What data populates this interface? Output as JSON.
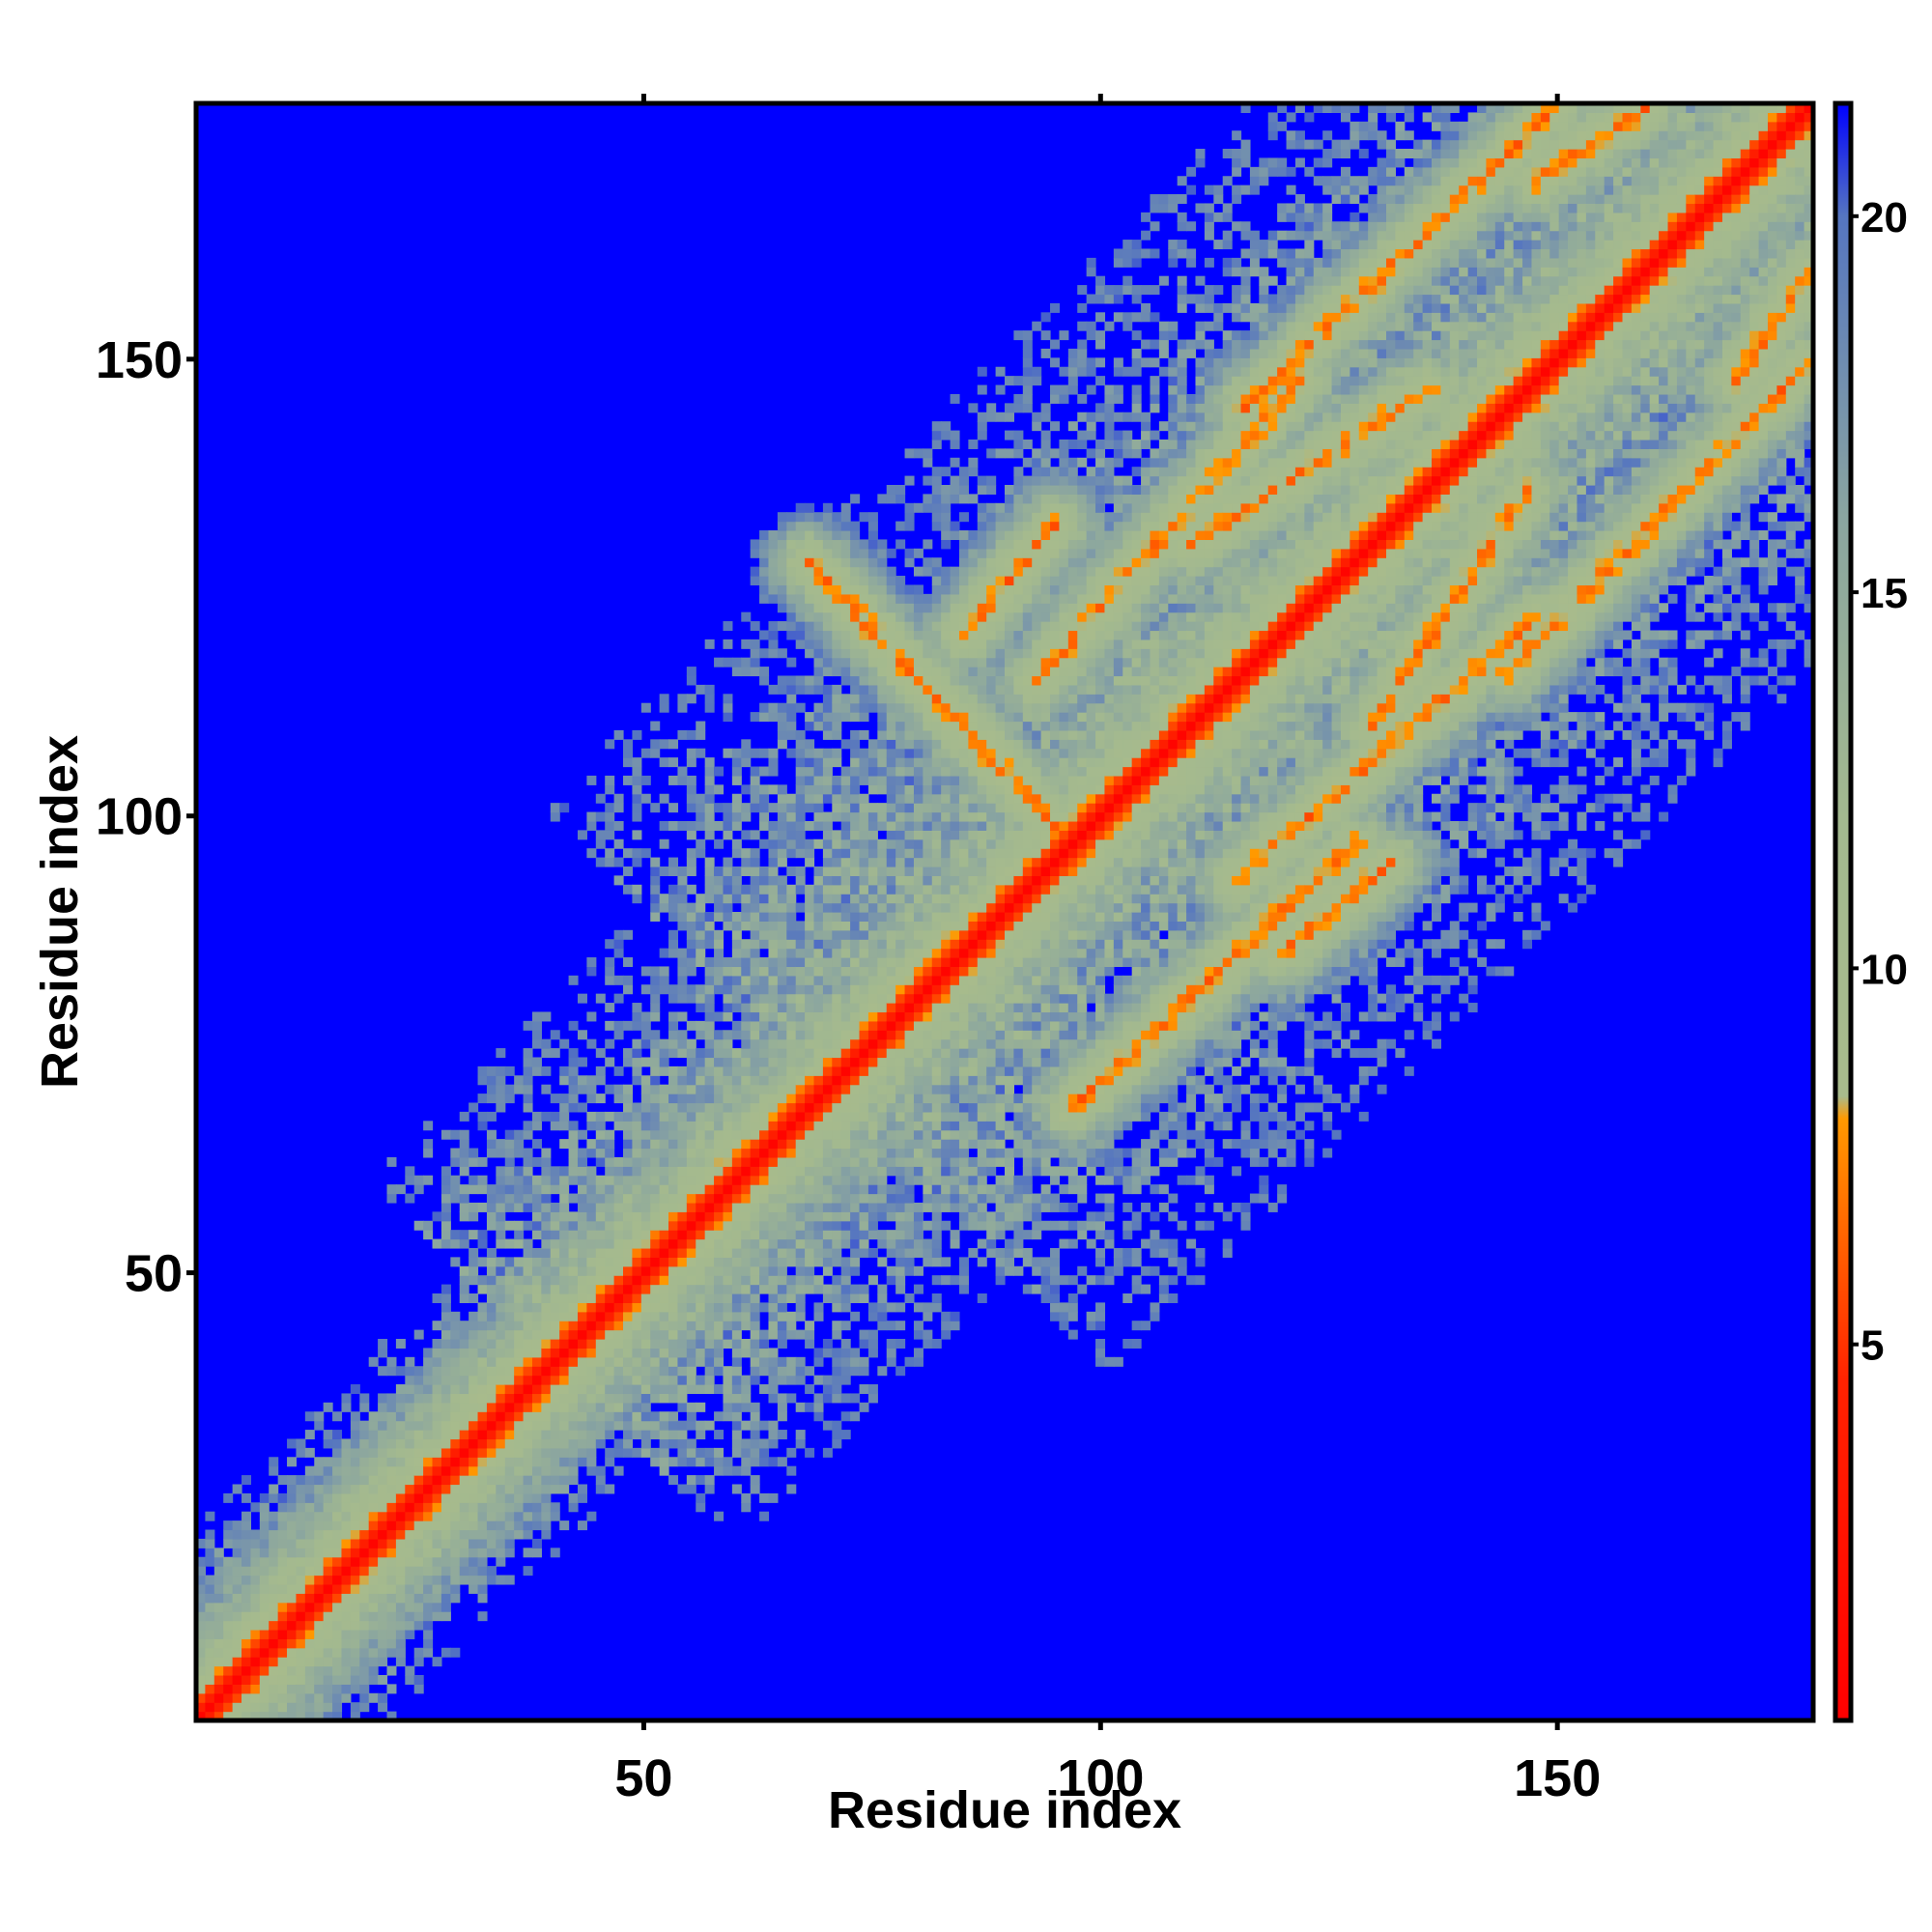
{
  "chart_data": {
    "type": "heatmap",
    "title": "",
    "xlabel": "Residue index",
    "ylabel": "Residue index",
    "n_residues": 178,
    "xlim": [
      1,
      178
    ],
    "ylim": [
      1,
      178
    ],
    "x_ticks": [
      50,
      100,
      150
    ],
    "y_ticks": [
      50,
      100,
      150
    ],
    "x_tick_labels": [
      "50",
      "100",
      "150"
    ],
    "y_tick_labels": [
      "50",
      "100",
      "150"
    ],
    "colorbar": {
      "range": [
        0,
        21.5
      ],
      "ticks": [
        5,
        10,
        15,
        20
      ],
      "tick_labels": [
        "5",
        "10",
        "15",
        "20"
      ],
      "stops": [
        {
          "value": 0,
          "color": "#ff0000"
        },
        {
          "value": 4.5,
          "color": "#ff2200"
        },
        {
          "value": 8,
          "color": "#ff9900"
        },
        {
          "value": 8.3,
          "color": "#a8bb8c"
        },
        {
          "value": 12,
          "color": "#a3b98f"
        },
        {
          "value": 16,
          "color": "#8aa5a0"
        },
        {
          "value": 20,
          "color": "#5575c0"
        },
        {
          "value": 21.5,
          "color": "#0000ff"
        }
      ]
    },
    "background_color": "#0000ff",
    "grid": false,
    "legend": "colorbar-right",
    "contact_bands": [
      {
        "x": [
          2,
          178
        ],
        "y": [
          2,
          178
        ],
        "kind": "diagonal"
      },
      {
        "x": [
          68,
          97
        ],
        "y": [
          128,
          97
        ],
        "kind": "antiparallel"
      },
      {
        "x": [
          97,
          128
        ],
        "y": [
          68,
          97
        ],
        "kind": "antiparallel"
      },
      {
        "x": [
          93,
          122
        ],
        "y": [
          115,
          148
        ],
        "kind": "parallel"
      },
      {
        "x": [
          115,
          148
        ],
        "y": [
          93,
          122
        ],
        "kind": "parallel"
      },
      {
        "x": [
          145,
          178
        ],
        "y": [
          116,
          150
        ],
        "kind": "parallel"
      },
      {
        "x": [
          116,
          150
        ],
        "y": [
          145,
          178
        ],
        "kind": "parallel"
      },
      {
        "x": [
          130,
          147
        ],
        "y": [
          110,
          136
        ],
        "kind": "parallel"
      },
      {
        "x": [
          110,
          136
        ],
        "y": [
          130,
          147
        ],
        "kind": "parallel"
      },
      {
        "x": [
          148,
          160
        ],
        "y": [
          170,
          178
        ],
        "kind": "parallel"
      },
      {
        "x": [
          170,
          178
        ],
        "y": [
          148,
          160
        ],
        "kind": "parallel"
      },
      {
        "x": [
          120,
          132
        ],
        "y": [
          85,
          95
        ],
        "kind": "parallel"
      },
      {
        "x": [
          85,
          95
        ],
        "y": [
          120,
          132
        ],
        "kind": "parallel"
      }
    ]
  }
}
